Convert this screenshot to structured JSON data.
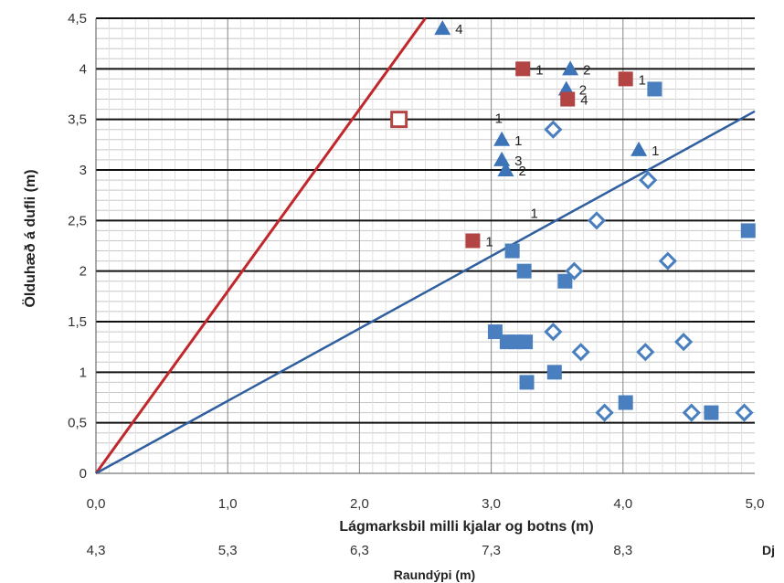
{
  "chart_data": {
    "type": "scatter",
    "xlabel": "Lágmarksbil milli kjalar og botns (m)",
    "ylabel": "Ölduhæð á dufli (m)",
    "xlim": [
      0,
      5
    ],
    "ylim": [
      0,
      4.5
    ],
    "x_ticks": [
      "0,0",
      "1,0",
      "2,0",
      "3,0",
      "4,0",
      "5,0"
    ],
    "y_ticks": [
      "0",
      "0,5",
      "1",
      "1,5",
      "2",
      "2,5",
      "3",
      "3,5",
      "4",
      "4,5"
    ],
    "secondary_x": {
      "label": "Raundýpi (m)",
      "ticks": [
        "4,3",
        "5,3",
        "6,3",
        "7,3",
        "8,3"
      ],
      "edge_label": "Dj"
    },
    "grid": {
      "major_y": true,
      "minor_y": true,
      "major_x": true,
      "minor_x": true
    },
    "colors": {
      "red": "#c0282c",
      "blue": "#2f5f9e",
      "red_square": "#b24444",
      "blue_square": "#4a7fbf",
      "blue_triangle": "#3d74b8",
      "diamond": "#4a7fbf"
    },
    "lines": [
      {
        "color": "red",
        "x": [
          0,
          2.5
        ],
        "y": [
          0,
          4.5
        ]
      },
      {
        "color": "blue",
        "x": [
          0,
          5
        ],
        "y": [
          0,
          3.58
        ]
      }
    ],
    "series": [
      {
        "marker": "triangle",
        "points": [
          {
            "x": 2.63,
            "y": 4.4,
            "label": "4"
          },
          {
            "x": 3.6,
            "y": 4.0,
            "label": "2"
          },
          {
            "x": 3.57,
            "y": 3.8,
            "label": "2"
          },
          {
            "x": 3.08,
            "y": 3.3,
            "label": "1"
          },
          {
            "x": 3.08,
            "y": 3.1,
            "label": "3"
          },
          {
            "x": 3.11,
            "y": 3.0,
            "label": "2"
          },
          {
            "x": 4.12,
            "y": 3.2,
            "label": "1"
          }
        ]
      },
      {
        "marker": "red-square",
        "points": [
          {
            "x": 3.24,
            "y": 4.0,
            "label": "1"
          },
          {
            "x": 3.58,
            "y": 3.7,
            "label": "4"
          },
          {
            "x": 4.02,
            "y": 3.9,
            "label": "1"
          },
          {
            "x": 2.86,
            "y": 2.3,
            "label": "1"
          }
        ]
      },
      {
        "marker": "red-square-hollow",
        "points": [
          {
            "x": 2.3,
            "y": 3.5
          }
        ]
      },
      {
        "marker": "blue-square",
        "points": [
          {
            "x": 4.24,
            "y": 3.8
          },
          {
            "x": 3.16,
            "y": 2.2
          },
          {
            "x": 3.25,
            "y": 2.0
          },
          {
            "x": 3.56,
            "y": 1.9
          },
          {
            "x": 4.95,
            "y": 2.4
          },
          {
            "x": 3.03,
            "y": 1.4
          },
          {
            "x": 3.12,
            "y": 1.3
          },
          {
            "x": 3.19,
            "y": 1.3
          },
          {
            "x": 3.26,
            "y": 1.3
          },
          {
            "x": 3.48,
            "y": 1.0
          },
          {
            "x": 3.27,
            "y": 0.9
          },
          {
            "x": 4.02,
            "y": 0.7
          },
          {
            "x": 4.67,
            "y": 0.6
          }
        ]
      },
      {
        "marker": "diamond",
        "points": [
          {
            "x": 3.47,
            "y": 3.4
          },
          {
            "x": 4.19,
            "y": 2.9
          },
          {
            "x": 3.8,
            "y": 2.5
          },
          {
            "x": 3.63,
            "y": 2.0
          },
          {
            "x": 4.34,
            "y": 2.1
          },
          {
            "x": 3.47,
            "y": 1.4
          },
          {
            "x": 3.68,
            "y": 1.2
          },
          {
            "x": 4.17,
            "y": 1.2
          },
          {
            "x": 4.46,
            "y": 1.3
          },
          {
            "x": 3.86,
            "y": 0.6
          },
          {
            "x": 4.52,
            "y": 0.6
          },
          {
            "x": 4.92,
            "y": 0.6
          }
        ]
      }
    ],
    "free_labels": [
      {
        "x": 3.0,
        "y": 3.52,
        "text": "1"
      },
      {
        "x": 3.27,
        "y": 2.58,
        "text": "1"
      }
    ]
  }
}
